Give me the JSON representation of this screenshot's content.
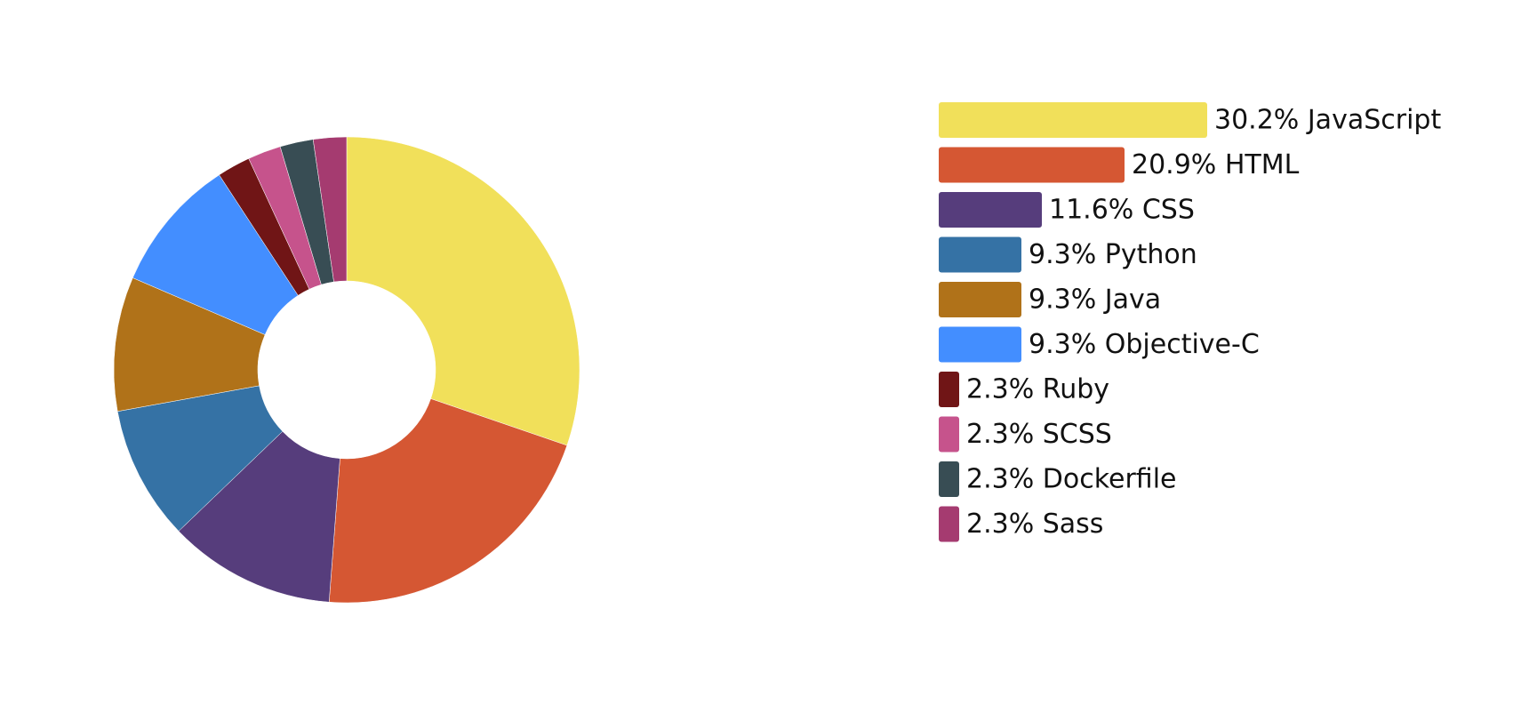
{
  "chart_data": {
    "type": "pie",
    "variant": "donut",
    "legend_position": "right",
    "slices": [
      {
        "label": "30.2% JavaScript",
        "name": "JavaScript",
        "value": 30.2,
        "color": "#F1E05A"
      },
      {
        "label": "20.9% HTML",
        "name": "HTML",
        "value": 20.9,
        "color": "#D55733"
      },
      {
        "label": "11.6% CSS",
        "name": "CSS",
        "value": 11.6,
        "color": "#563D7C"
      },
      {
        "label": "9.3% Python",
        "name": "Python",
        "value": 9.3,
        "color": "#3572A5"
      },
      {
        "label": "9.3% Java",
        "name": "Java",
        "value": 9.3,
        "color": "#B07219"
      },
      {
        "label": "9.3% Objective-C",
        "name": "Objective-C",
        "value": 9.3,
        "color": "#438EFF"
      },
      {
        "label": "2.3% Ruby",
        "name": "Ruby",
        "value": 2.3,
        "color": "#701516"
      },
      {
        "label": "2.3% SCSS",
        "name": "SCSS",
        "value": 2.3,
        "color": "#C6538C"
      },
      {
        "label": "2.3% Dockerfile",
        "name": "Dockerfile",
        "value": 2.3,
        "color": "#384D54"
      },
      {
        "label": "2.3% Sass",
        "name": "Sass",
        "value": 2.3,
        "color": "#A53B70"
      }
    ]
  }
}
